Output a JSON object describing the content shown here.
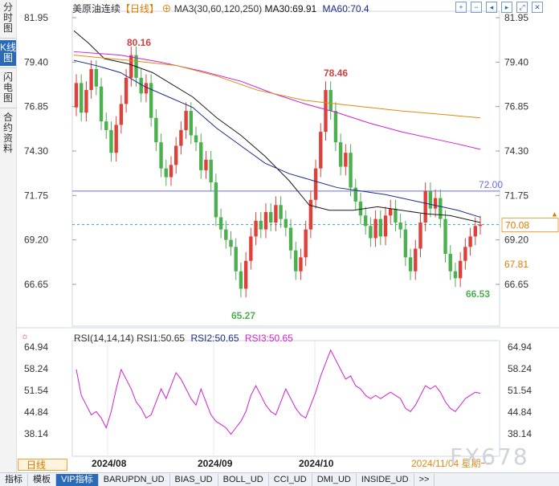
{
  "side_tabs": [
    {
      "label": "分时图"
    },
    {
      "label": "K线图"
    },
    {
      "label": "闪电图"
    },
    {
      "label": "合约资料"
    }
  ],
  "header": {
    "name": "美原油连续",
    "period_tag": "【日线】",
    "ma_label": "MA3(30,60,120,250)",
    "ma30": "MA30:69.91",
    "ma60": "MA60:70.4"
  },
  "rsi_header": {
    "label": "RSI(14,14,14)",
    "rsi1": "RSI1:50.65",
    "rsi2": "RSI2:50.65",
    "rsi3": "RSI3:50.65"
  },
  "toolbar_icons": [
    "add-icon",
    "minus-icon",
    "left-icon",
    "right-icon",
    "expand-icon",
    "close-icon"
  ],
  "period_button": "日线",
  "bottom_tabs": [
    "指标",
    "模板",
    "VIP指标",
    "BARUPDN_UD",
    "BIAS_UD",
    "BOLL_UD",
    "CCI_UD",
    "DMI_UD",
    "INSIDE_UD",
    ">>"
  ],
  "watermark": "FX678",
  "chart_data": {
    "type": "candlestick",
    "y_ticks": [
      "81.95",
      "79.40",
      "76.85",
      "74.30",
      "71.75",
      "69.20",
      "66.65"
    ],
    "rsi_ticks": [
      "64.94",
      "58.24",
      "51.54",
      "44.84",
      "38.14"
    ],
    "x_labels": [
      "2024/08",
      "2024/09",
      "2024/10",
      "2024/11/04 星期一"
    ],
    "annotations": {
      "high1": "80.16",
      "high2": "78.46",
      "low1": "65.27",
      "low2": "66.53",
      "hline": "72.00",
      "last": "70.08",
      "ma_tag": "67.81"
    },
    "colors": {
      "up": "#e0403a",
      "down": "#4caf50",
      "ma30": "#1a1a1a",
      "ma60": "#1a2a8a",
      "ma120": "#d020d0",
      "ma250": "#e08a10",
      "rsi": "#d020d0",
      "hline": "#6a6ae8",
      "last": "#3aa6a6"
    }
  }
}
